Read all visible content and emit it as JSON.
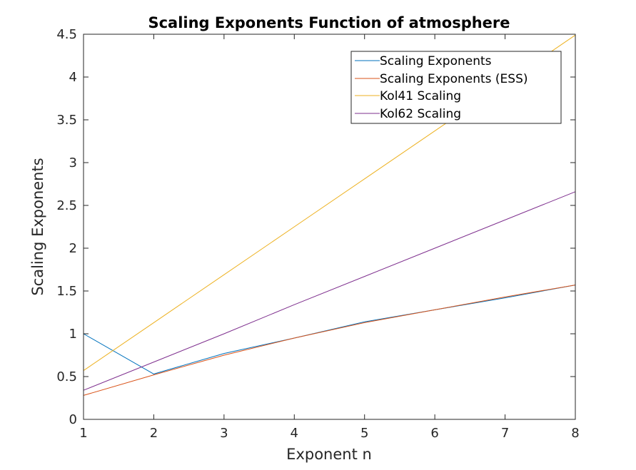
{
  "chart_data": {
    "type": "line",
    "title": "Scaling Exponents Function of atmosphere",
    "xlabel": "Exponent n",
    "ylabel": "Scaling Exponents",
    "xlim": [
      1,
      8
    ],
    "ylim": [
      0,
      4.5
    ],
    "xticks": [
      1,
      2,
      3,
      4,
      5,
      6,
      7,
      8
    ],
    "yticks": [
      0,
      0.5,
      1,
      1.5,
      2,
      2.5,
      3,
      3.5,
      4,
      4.5
    ],
    "xtick_labels": [
      "1",
      "2",
      "3",
      "4",
      "5",
      "6",
      "7",
      "8"
    ],
    "ytick_labels": [
      "0",
      "0.5",
      "1",
      "1.5",
      "2",
      "2.5",
      "3",
      "3.5",
      "4",
      "4.5"
    ],
    "grid": false,
    "legend_position": "top-right",
    "x": [
      1,
      2,
      3,
      4,
      5,
      6,
      7,
      8
    ],
    "series": [
      {
        "name": "Scaling Exponents",
        "color": "#0072BD",
        "values": [
          1.0,
          0.53,
          0.77,
          0.95,
          1.14,
          1.28,
          1.42,
          1.57
        ]
      },
      {
        "name": "Scaling Exponents (ESS)",
        "color": "#D95319",
        "values": [
          0.28,
          0.52,
          0.75,
          0.95,
          1.13,
          1.28,
          1.43,
          1.57
        ]
      },
      {
        "name": "Kol41 Scaling",
        "color": "#EDB120",
        "values": [
          0.57,
          1.13,
          1.69,
          2.25,
          2.81,
          3.37,
          3.93,
          4.49
        ]
      },
      {
        "name": "Kol62 Scaling",
        "color": "#7E2F8E",
        "values": [
          0.34,
          0.67,
          1.0,
          1.34,
          1.67,
          2.0,
          2.33,
          2.66
        ]
      }
    ]
  }
}
